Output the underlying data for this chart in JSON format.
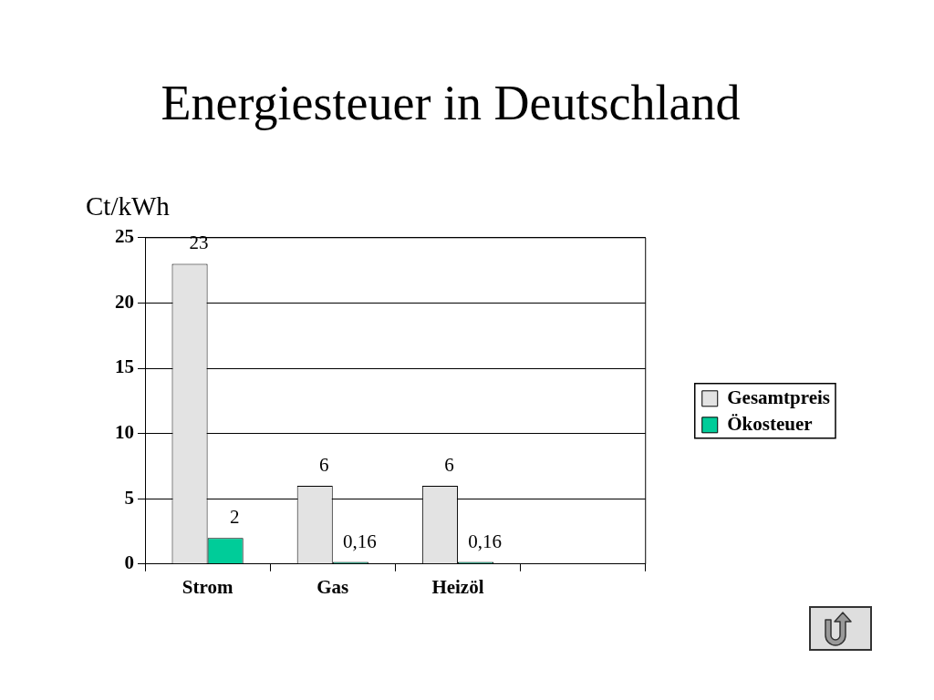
{
  "chart_data": {
    "type": "bar",
    "title": "Energiesteuer in Deutschland",
    "ylabel": "Ct/kWh",
    "categories": [
      "Strom",
      "Gas",
      "Heizöl",
      null
    ],
    "series": [
      {
        "name": "Gesamtpreis",
        "color": "#e3e3e3",
        "values": [
          23,
          6,
          6,
          null
        ],
        "value_labels": [
          "23",
          "6",
          "6",
          null
        ]
      },
      {
        "name": "Ökosteuer",
        "color": "#00cc99",
        "values": [
          2,
          0.16,
          0.16,
          null
        ],
        "value_labels": [
          "2",
          "0,16",
          "0,16",
          null
        ]
      }
    ],
    "ylim": [
      0,
      25
    ],
    "yticks": [
      0,
      5,
      10,
      15,
      20,
      25
    ],
    "grid": "y",
    "legend": "right"
  }
}
